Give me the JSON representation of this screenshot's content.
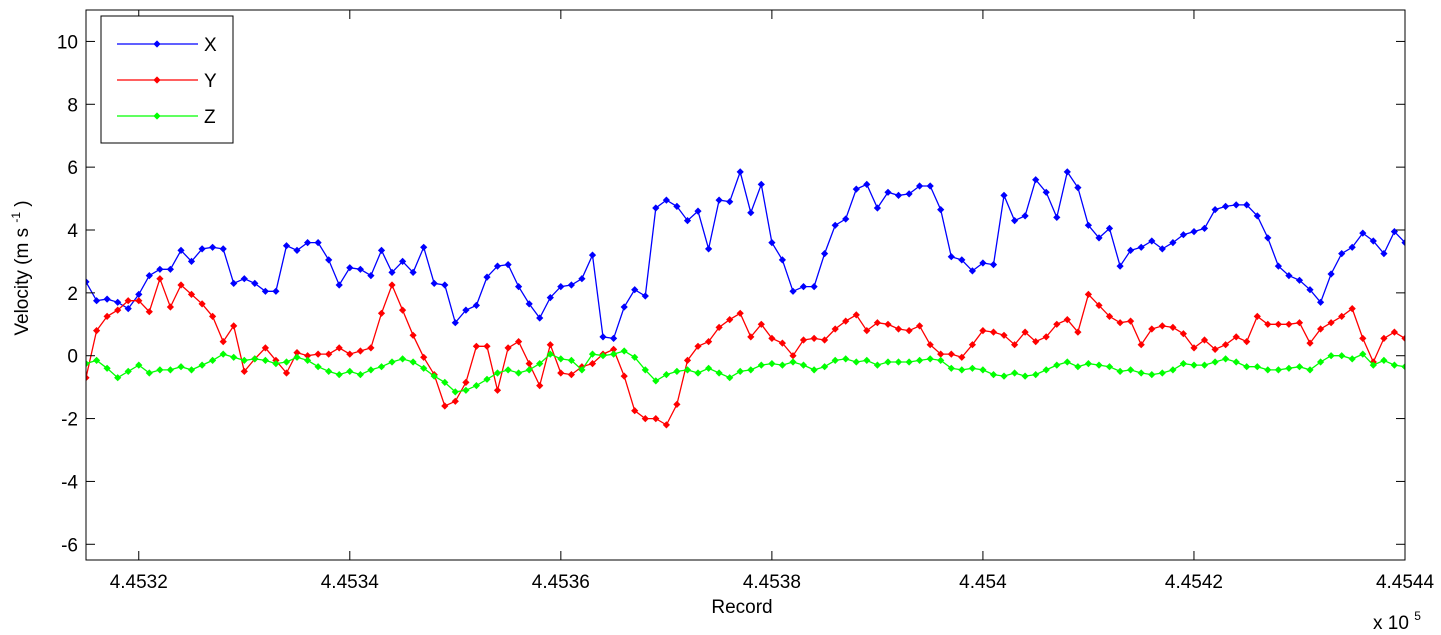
{
  "chart_data": {
    "type": "line",
    "xlabel": "Record",
    "ylabel_main": "Velocity (m s",
    "ylabel_exp": "-1",
    "ylabel_close": ")",
    "x_multiplier_base": "x 10",
    "x_multiplier_exp": "5",
    "xlim": [
      445315,
      445440
    ],
    "ylim": [
      -6.5,
      11
    ],
    "x_ticks": [
      445320,
      445340,
      445360,
      445380,
      445400,
      445420,
      445440
    ],
    "x_tick_labels": [
      "4.4532",
      "4.4534",
      "4.4536",
      "4.4538",
      "4.454",
      "4.4542",
      "4.4544"
    ],
    "y_ticks": [
      -6,
      -4,
      -2,
      0,
      2,
      4,
      6,
      8,
      10
    ],
    "y_tick_labels": [
      "-6",
      "-4",
      "-2",
      "0",
      "2",
      "4",
      "6",
      "8",
      "10"
    ],
    "legend_position": "top-left",
    "grid": false,
    "series": [
      {
        "name": "X",
        "color": "#0000ff",
        "x_start": 445315,
        "x_step": 1,
        "values": [
          2.35,
          1.75,
          1.8,
          1.7,
          1.5,
          1.95,
          2.55,
          2.75,
          2.75,
          3.35,
          3.0,
          3.4,
          3.45,
          3.4,
          2.3,
          2.45,
          2.3,
          2.05,
          2.05,
          3.5,
          3.35,
          3.6,
          3.6,
          3.05,
          2.25,
          2.8,
          2.75,
          2.55,
          3.35,
          2.65,
          3.0,
          2.65,
          3.45,
          2.3,
          2.25,
          1.05,
          1.45,
          1.6,
          2.5,
          2.85,
          2.9,
          2.2,
          1.65,
          1.2,
          1.85,
          2.2,
          2.25,
          2.45,
          3.2,
          0.6,
          0.55,
          1.55,
          2.1,
          1.9,
          4.7,
          4.95,
          4.75,
          4.3,
          4.6,
          3.4,
          4.95,
          4.9,
          5.85,
          4.55,
          5.45,
          3.6,
          3.05,
          2.05,
          2.2,
          2.2,
          3.25,
          4.15,
          4.35,
          5.3,
          5.45,
          4.7,
          5.2,
          5.1,
          5.15,
          5.4,
          5.4,
          4.65,
          3.15,
          3.05,
          2.7,
          2.95,
          2.9,
          5.1,
          4.3,
          4.45,
          5.6,
          5.2,
          4.4,
          5.85,
          5.35,
          4.15,
          3.75,
          4.05,
          2.85,
          3.35,
          3.45,
          3.65,
          3.4,
          3.6,
          3.85,
          3.95,
          4.05,
          4.65,
          4.75,
          4.8,
          4.8,
          4.45,
          3.75,
          2.85,
          2.55,
          2.4,
          2.1,
          1.7,
          2.6,
          3.25,
          3.45,
          3.9,
          3.65,
          3.25,
          3.95,
          3.6,
          2.85
        ]
      },
      {
        "name": "Y",
        "color": "#ff0000",
        "x_start": 445315,
        "x_step": 1,
        "values": [
          -0.7,
          0.8,
          1.25,
          1.45,
          1.75,
          1.75,
          1.4,
          2.45,
          1.55,
          2.25,
          1.95,
          1.65,
          1.25,
          0.45,
          0.95,
          -0.5,
          -0.1,
          0.25,
          -0.15,
          -0.55,
          0.1,
          0.0,
          0.05,
          0.05,
          0.25,
          0.05,
          0.15,
          0.25,
          1.35,
          2.25,
          1.45,
          0.65,
          -0.05,
          -0.6,
          -1.6,
          -1.45,
          -0.85,
          0.3,
          0.3,
          -1.1,
          0.25,
          0.45,
          -0.25,
          -0.95,
          0.35,
          -0.55,
          -0.6,
          -0.35,
          -0.25,
          0.05,
          0.2,
          -0.65,
          -1.75,
          -2.0,
          -2.0,
          -2.2,
          -1.55,
          -0.15,
          0.3,
          0.45,
          0.9,
          1.15,
          1.35,
          0.6,
          1.0,
          0.55,
          0.4,
          0.0,
          0.5,
          0.55,
          0.5,
          0.85,
          1.1,
          1.3,
          0.8,
          1.05,
          1.0,
          0.85,
          0.8,
          0.95,
          0.35,
          0.05,
          0.05,
          -0.05,
          0.35,
          0.8,
          0.75,
          0.65,
          0.35,
          0.75,
          0.45,
          0.6,
          1.0,
          1.15,
          0.75,
          1.95,
          1.6,
          1.25,
          1.05,
          1.1,
          0.35,
          0.85,
          0.95,
          0.9,
          0.7,
          0.25,
          0.5,
          0.2,
          0.35,
          0.6,
          0.45,
          1.25,
          1.0,
          1.0,
          1.0,
          1.05,
          0.4,
          0.85,
          1.05,
          1.25,
          1.5,
          0.55,
          -0.2,
          0.55,
          0.75,
          0.55
        ]
      },
      {
        "name": "Z",
        "color": "#00ff00",
        "x_start": 445315,
        "x_step": 1,
        "values": [
          -0.25,
          -0.15,
          -0.4,
          -0.7,
          -0.5,
          -0.3,
          -0.55,
          -0.45,
          -0.45,
          -0.35,
          -0.45,
          -0.3,
          -0.15,
          0.05,
          -0.05,
          -0.15,
          -0.1,
          -0.15,
          -0.25,
          -0.2,
          -0.05,
          -0.15,
          -0.35,
          -0.5,
          -0.6,
          -0.5,
          -0.6,
          -0.45,
          -0.35,
          -0.2,
          -0.1,
          -0.2,
          -0.4,
          -0.65,
          -0.85,
          -1.15,
          -1.1,
          -0.95,
          -0.75,
          -0.55,
          -0.45,
          -0.55,
          -0.45,
          -0.25,
          0.05,
          -0.1,
          -0.15,
          -0.45,
          0.05,
          0.0,
          0.05,
          0.15,
          -0.05,
          -0.45,
          -0.8,
          -0.6,
          -0.5,
          -0.45,
          -0.55,
          -0.4,
          -0.55,
          -0.7,
          -0.5,
          -0.45,
          -0.3,
          -0.25,
          -0.3,
          -0.2,
          -0.3,
          -0.45,
          -0.35,
          -0.15,
          -0.1,
          -0.2,
          -0.15,
          -0.3,
          -0.2,
          -0.2,
          -0.2,
          -0.15,
          -0.1,
          -0.15,
          -0.4,
          -0.45,
          -0.4,
          -0.45,
          -0.6,
          -0.65,
          -0.55,
          -0.65,
          -0.6,
          -0.45,
          -0.3,
          -0.2,
          -0.35,
          -0.25,
          -0.3,
          -0.35,
          -0.5,
          -0.45,
          -0.55,
          -0.6,
          -0.55,
          -0.45,
          -0.25,
          -0.3,
          -0.3,
          -0.2,
          -0.1,
          -0.2,
          -0.35,
          -0.35,
          -0.45,
          -0.45,
          -0.4,
          -0.35,
          -0.45,
          -0.2,
          0.0,
          0.0,
          -0.1,
          0.05,
          -0.3,
          -0.15,
          -0.3,
          -0.35
        ]
      }
    ]
  }
}
